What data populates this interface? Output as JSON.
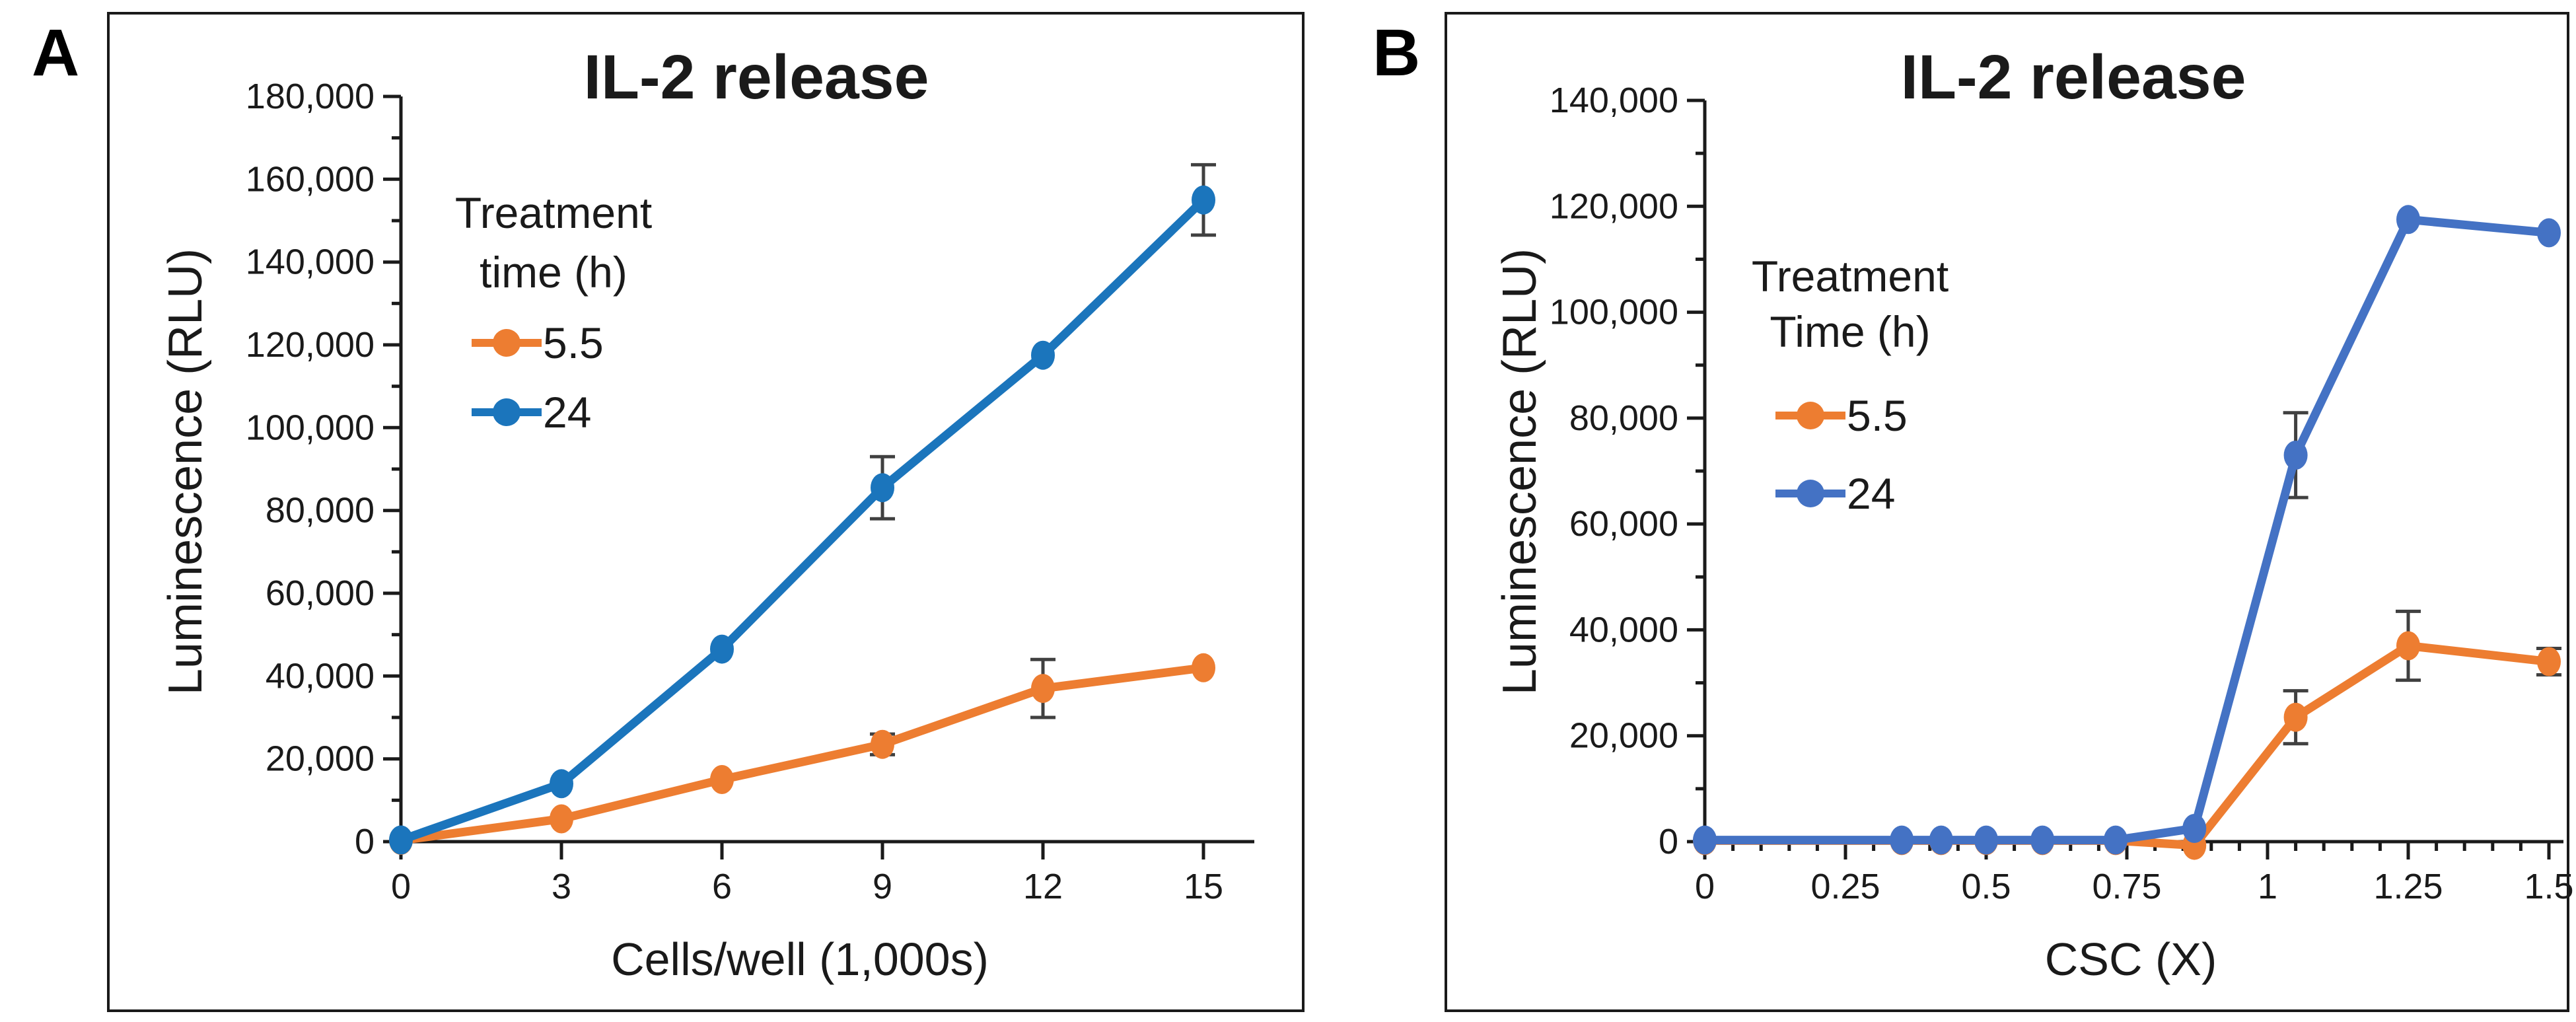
{
  "figure_background": "#ffffff",
  "panel_labels": [
    "A",
    "B"
  ],
  "chart_data": [
    {
      "panel": "A",
      "type": "line",
      "title": "IL-2 release",
      "xlabel": "Cells/well (1,000s)",
      "ylabel": "Luminescence (RLU)",
      "xlim": [
        0,
        16
      ],
      "ylim": [
        0,
        180000
      ],
      "x_major_ticks": [
        0,
        3,
        6,
        9,
        12,
        15
      ],
      "x_tick_labels": [
        "0",
        "3",
        "6",
        "9",
        "12",
        "15"
      ],
      "x_minor_step": null,
      "y_major_ticks": [
        0,
        20000,
        40000,
        60000,
        80000,
        100000,
        120000,
        140000,
        160000,
        180000
      ],
      "y_tick_labels": [
        "0",
        "20,000",
        "40,000",
        "60,000",
        "80,000",
        "100,000",
        "120,000",
        "140,000",
        "160,000",
        "180,000"
      ],
      "y_minor_step": 10000,
      "grid": false,
      "legend": {
        "position": "upper-left-inside",
        "title_line1": "Treatment",
        "title_line2": "time (h)"
      },
      "series": [
        {
          "name": "5.5",
          "color": "#ED7D31",
          "x": [
            0,
            3,
            6,
            9,
            12,
            15
          ],
          "y": [
            300,
            5500,
            15000,
            23500,
            37000,
            42000
          ],
          "err": [
            0,
            0,
            0,
            2500,
            7000,
            0
          ]
        },
        {
          "name": "24",
          "color": "#1B75BC",
          "x": [
            0,
            3,
            6,
            9,
            12,
            15
          ],
          "y": [
            400,
            14000,
            46500,
            85500,
            117500,
            155000
          ],
          "err": [
            0,
            0,
            0,
            7500,
            0,
            8500
          ]
        }
      ],
      "error_bar_color": "#404040"
    },
    {
      "panel": "B",
      "type": "line",
      "title": "IL-2 release",
      "xlabel": "CSC (X)",
      "ylabel": "Luminescence (RLU)",
      "xlim": [
        0,
        1.55
      ],
      "ylim": [
        0,
        140000
      ],
      "x_major_ticks": [
        0,
        0.25,
        0.5,
        0.75,
        1,
        1.25,
        1.5
      ],
      "x_tick_labels": [
        "0",
        "0.25",
        "0.5",
        "0.75",
        "1",
        "1.25",
        "1.5"
      ],
      "x_minor_step": 0.05,
      "y_major_ticks": [
        0,
        20000,
        40000,
        60000,
        80000,
        100000,
        120000,
        140000
      ],
      "y_tick_labels": [
        "0",
        "20,000",
        "40,000",
        "60,000",
        "80,000",
        "100,000",
        "120,000",
        "140,000"
      ],
      "y_minor_step": 10000,
      "grid": false,
      "legend": {
        "position": "upper-left-inside",
        "title_line1": "Treatment",
        "title_line2": "Time (h)"
      },
      "series": [
        {
          "name": "5.5",
          "color": "#ED7D31",
          "x": [
            0,
            0.35,
            0.42,
            0.5,
            0.6,
            0.73,
            0.87,
            1.05,
            1.25,
            1.5
          ],
          "y": [
            200,
            200,
            200,
            200,
            200,
            200,
            -700,
            23500,
            37000,
            34000
          ],
          "err": [
            0,
            0,
            0,
            0,
            0,
            0,
            0,
            5000,
            6500,
            2500
          ]
        },
        {
          "name": "24",
          "color": "#4472C4",
          "x": [
            0,
            0.35,
            0.42,
            0.5,
            0.6,
            0.73,
            0.87,
            1.05,
            1.25,
            1.5
          ],
          "y": [
            300,
            300,
            300,
            300,
            300,
            300,
            2500,
            73000,
            117500,
            115000
          ],
          "err": [
            0,
            0,
            0,
            0,
            0,
            0,
            0,
            8000,
            0,
            0
          ]
        }
      ],
      "error_bar_color": "#404040"
    }
  ]
}
